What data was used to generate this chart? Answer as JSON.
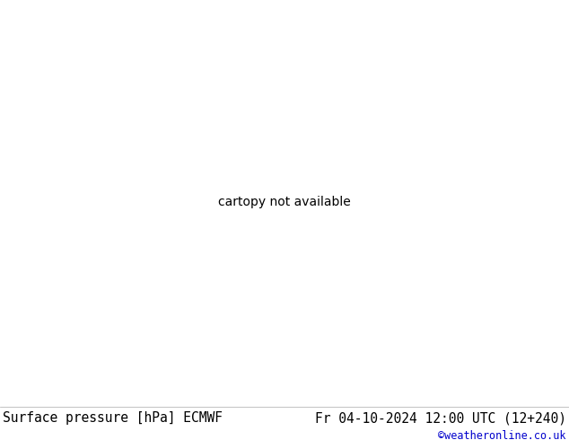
{
  "title_left": "Surface pressure [hPa] ECMWF",
  "title_right": "Fr 04-10-2024 12:00 UTC (12+240)",
  "credit": "©weatheronline.co.uk",
  "bg_land": "#c8e8a0",
  "bg_sea": "#c8d0d8",
  "bg_fig": "#ffffff",
  "bottom_text_color": "#000000",
  "credit_color": "#0000cc",
  "title_fontsize": 10.5,
  "credit_fontsize": 8.5,
  "figsize": [
    6.34,
    4.9
  ],
  "dpi": 100,
  "red_color": "#cc0000",
  "blue_color": "#0000cc",
  "black_color": "#000000",
  "label_fontsize": 7,
  "isobar_lw": 1.0,
  "black_lw": 1.5,
  "map_extent": [
    -18,
    32,
    35,
    72
  ]
}
